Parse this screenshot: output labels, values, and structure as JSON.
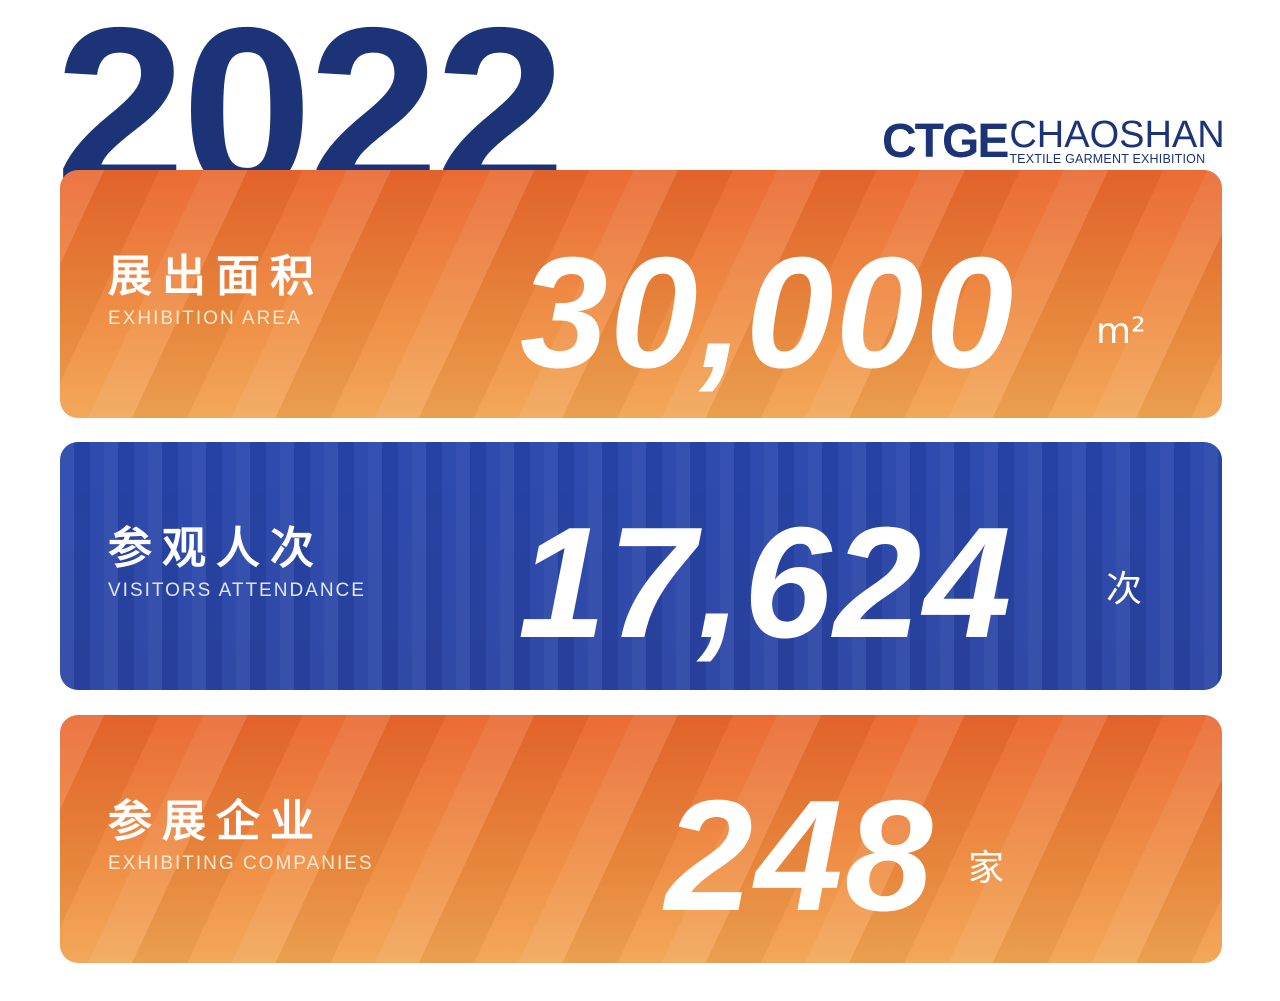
{
  "header": {
    "year": "2022"
  },
  "logo": {
    "brand": "CTGE",
    "city": "CHAOSHAN",
    "tagline": "TEXTILE GARMENT EXHIBITION"
  },
  "colors": {
    "navy": "#1c3477",
    "orange": "#e9652c",
    "blue": "#2846ac"
  },
  "stats": [
    {
      "label_cn": "展出面积",
      "label_en": "EXHIBITION AREA",
      "value": "30,000",
      "unit": "m²"
    },
    {
      "label_cn": "参观人次",
      "label_en": "VISITORS ATTENDANCE",
      "value": "17,624",
      "unit": "次"
    },
    {
      "label_cn": "参展企业",
      "label_en": "EXHIBITING COMPANIES",
      "value": "248",
      "unit": "家"
    }
  ]
}
